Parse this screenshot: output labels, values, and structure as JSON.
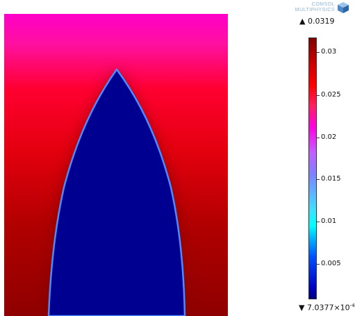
{
  "logo": {
    "line1": "COMSOL",
    "line2": "MULTIPHYSICS"
  },
  "colorbar": {
    "max_label": "▲ 0.0319",
    "min_prefix": "▼ 7.0377×10",
    "min_exponent": "-4",
    "ticks": [
      "0.03",
      "0.025",
      "0.02",
      "0.015",
      "0.01",
      "0.005"
    ],
    "max_color": "#800000",
    "min_color": "#000080"
  },
  "plot": {
    "field_top_color": "#ff00c8",
    "field_bottom_color": "#8f0000",
    "bullet_fill_color": "#000090",
    "interface_color": "#4080ff"
  }
}
